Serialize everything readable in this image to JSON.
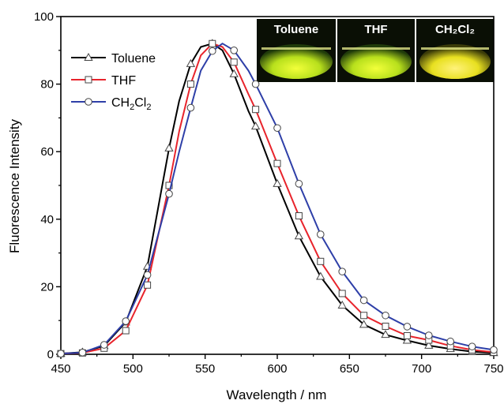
{
  "chart_data": {
    "type": "line",
    "xlabel": "Wavelength / nm",
    "ylabel": "Fluorescence Intensity",
    "xlim": [
      450,
      750
    ],
    "ylim": [
      0,
      100
    ],
    "xticks": [
      450,
      500,
      550,
      600,
      650,
      700,
      750
    ],
    "yticks": [
      0,
      20,
      40,
      60,
      80,
      100
    ],
    "legend_position": "top-left",
    "series": [
      {
        "name": "Toluene",
        "color": "#000000",
        "marker": "triangle",
        "points": [
          [
            450,
            0.2
          ],
          [
            465,
            0.6
          ],
          [
            480,
            2.5
          ],
          [
            495,
            9.5
          ],
          [
            510,
            26
          ],
          [
            525,
            61
          ],
          [
            532,
            75
          ],
          [
            540,
            86
          ],
          [
            547,
            91
          ],
          [
            555,
            92
          ],
          [
            562,
            90
          ],
          [
            570,
            83
          ],
          [
            580,
            72
          ],
          [
            585,
            67.5
          ],
          [
            600,
            50.5
          ],
          [
            615,
            35
          ],
          [
            630,
            23
          ],
          [
            645,
            14.5
          ],
          [
            660,
            8.8
          ],
          [
            675,
            5.8
          ],
          [
            690,
            4.1
          ],
          [
            705,
            2.6
          ],
          [
            720,
            1.6
          ],
          [
            735,
            0.8
          ],
          [
            750,
            0.4
          ]
        ],
        "marker_x": [
          450,
          465,
          480,
          495,
          510,
          525,
          540,
          555,
          570,
          585,
          600,
          615,
          630,
          645,
          660,
          675,
          690,
          705,
          720,
          735,
          750
        ]
      },
      {
        "name": "THF",
        "color": "#e8242c",
        "marker": "square",
        "points": [
          [
            450,
            0.2
          ],
          [
            465,
            0.4
          ],
          [
            480,
            1.8
          ],
          [
            495,
            7
          ],
          [
            510,
            20.5
          ],
          [
            525,
            50
          ],
          [
            532,
            66
          ],
          [
            540,
            80
          ],
          [
            547,
            88.5
          ],
          [
            555,
            92
          ],
          [
            562,
            91
          ],
          [
            570,
            86.5
          ],
          [
            580,
            77
          ],
          [
            585,
            72.5
          ],
          [
            600,
            56.5
          ],
          [
            615,
            41
          ],
          [
            630,
            27.5
          ],
          [
            645,
            18
          ],
          [
            660,
            11.5
          ],
          [
            675,
            8.3
          ],
          [
            690,
            5.5
          ],
          [
            705,
            4.2
          ],
          [
            720,
            2.5
          ],
          [
            735,
            1.3
          ],
          [
            750,
            0.6
          ]
        ],
        "marker_x": [
          450,
          465,
          480,
          495,
          510,
          525,
          540,
          555,
          570,
          585,
          600,
          615,
          630,
          645,
          660,
          675,
          690,
          705,
          720,
          735,
          750
        ]
      },
      {
        "name": "CH2Cl2",
        "color": "#2e3fa8",
        "marker": "circle",
        "points": [
          [
            450,
            0.2
          ],
          [
            465,
            0.5
          ],
          [
            480,
            2.8
          ],
          [
            495,
            9.8
          ],
          [
            510,
            23.5
          ],
          [
            525,
            47.5
          ],
          [
            532,
            60
          ],
          [
            540,
            73
          ],
          [
            547,
            84
          ],
          [
            555,
            89.8
          ],
          [
            562,
            92
          ],
          [
            570,
            90
          ],
          [
            580,
            84
          ],
          [
            585,
            80
          ],
          [
            600,
            67
          ],
          [
            615,
            50.5
          ],
          [
            630,
            35.5
          ],
          [
            645,
            24.5
          ],
          [
            660,
            16
          ],
          [
            675,
            11.5
          ],
          [
            690,
            8.2
          ],
          [
            705,
            5.6
          ],
          [
            720,
            3.8
          ],
          [
            735,
            2.3
          ],
          [
            750,
            1.3
          ]
        ],
        "marker_x": [
          450,
          465,
          480,
          495,
          510,
          525,
          540,
          555,
          570,
          585,
          600,
          615,
          630,
          645,
          660,
          675,
          690,
          705,
          720,
          735,
          750
        ]
      }
    ],
    "inset_labels": [
      "Toluene",
      "THF",
      "CH₂Cl₂"
    ]
  }
}
